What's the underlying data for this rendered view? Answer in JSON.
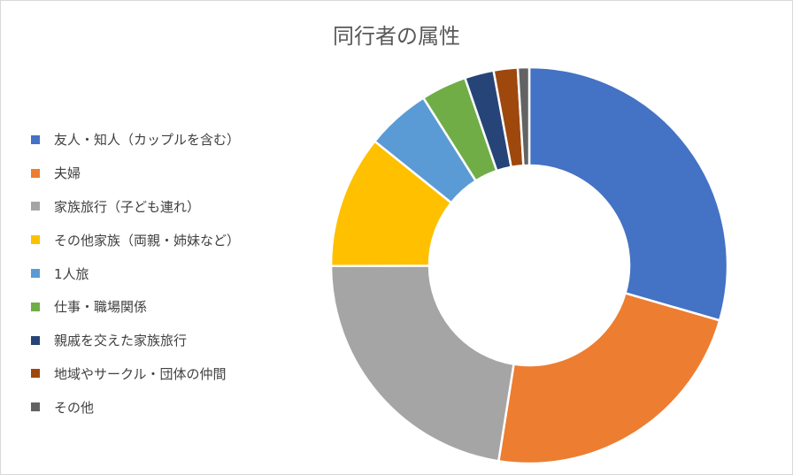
{
  "chart_data": {
    "type": "pie",
    "variant": "donut",
    "title": "同行者の属性",
    "legend_position": "left",
    "categories": [
      "友人・知人（カップルを含む）",
      "夫婦",
      "家族旅行（子ども連れ）",
      "その他家族（両親・姉妹など）",
      "1人旅",
      "仕事・職場関係",
      "親戚を交えた家族旅行",
      "地域やサークル・団体の仲間",
      "その他"
    ],
    "values": [
      28.6,
      22.3,
      21.8,
      10.5,
      5.1,
      3.6,
      2.3,
      1.9,
      0.9
    ],
    "colors": [
      "#4472C4",
      "#ED7D31",
      "#A5A5A5",
      "#FFC000",
      "#5B9BD5",
      "#70AD47",
      "#264478",
      "#9E480E",
      "#636363"
    ]
  }
}
